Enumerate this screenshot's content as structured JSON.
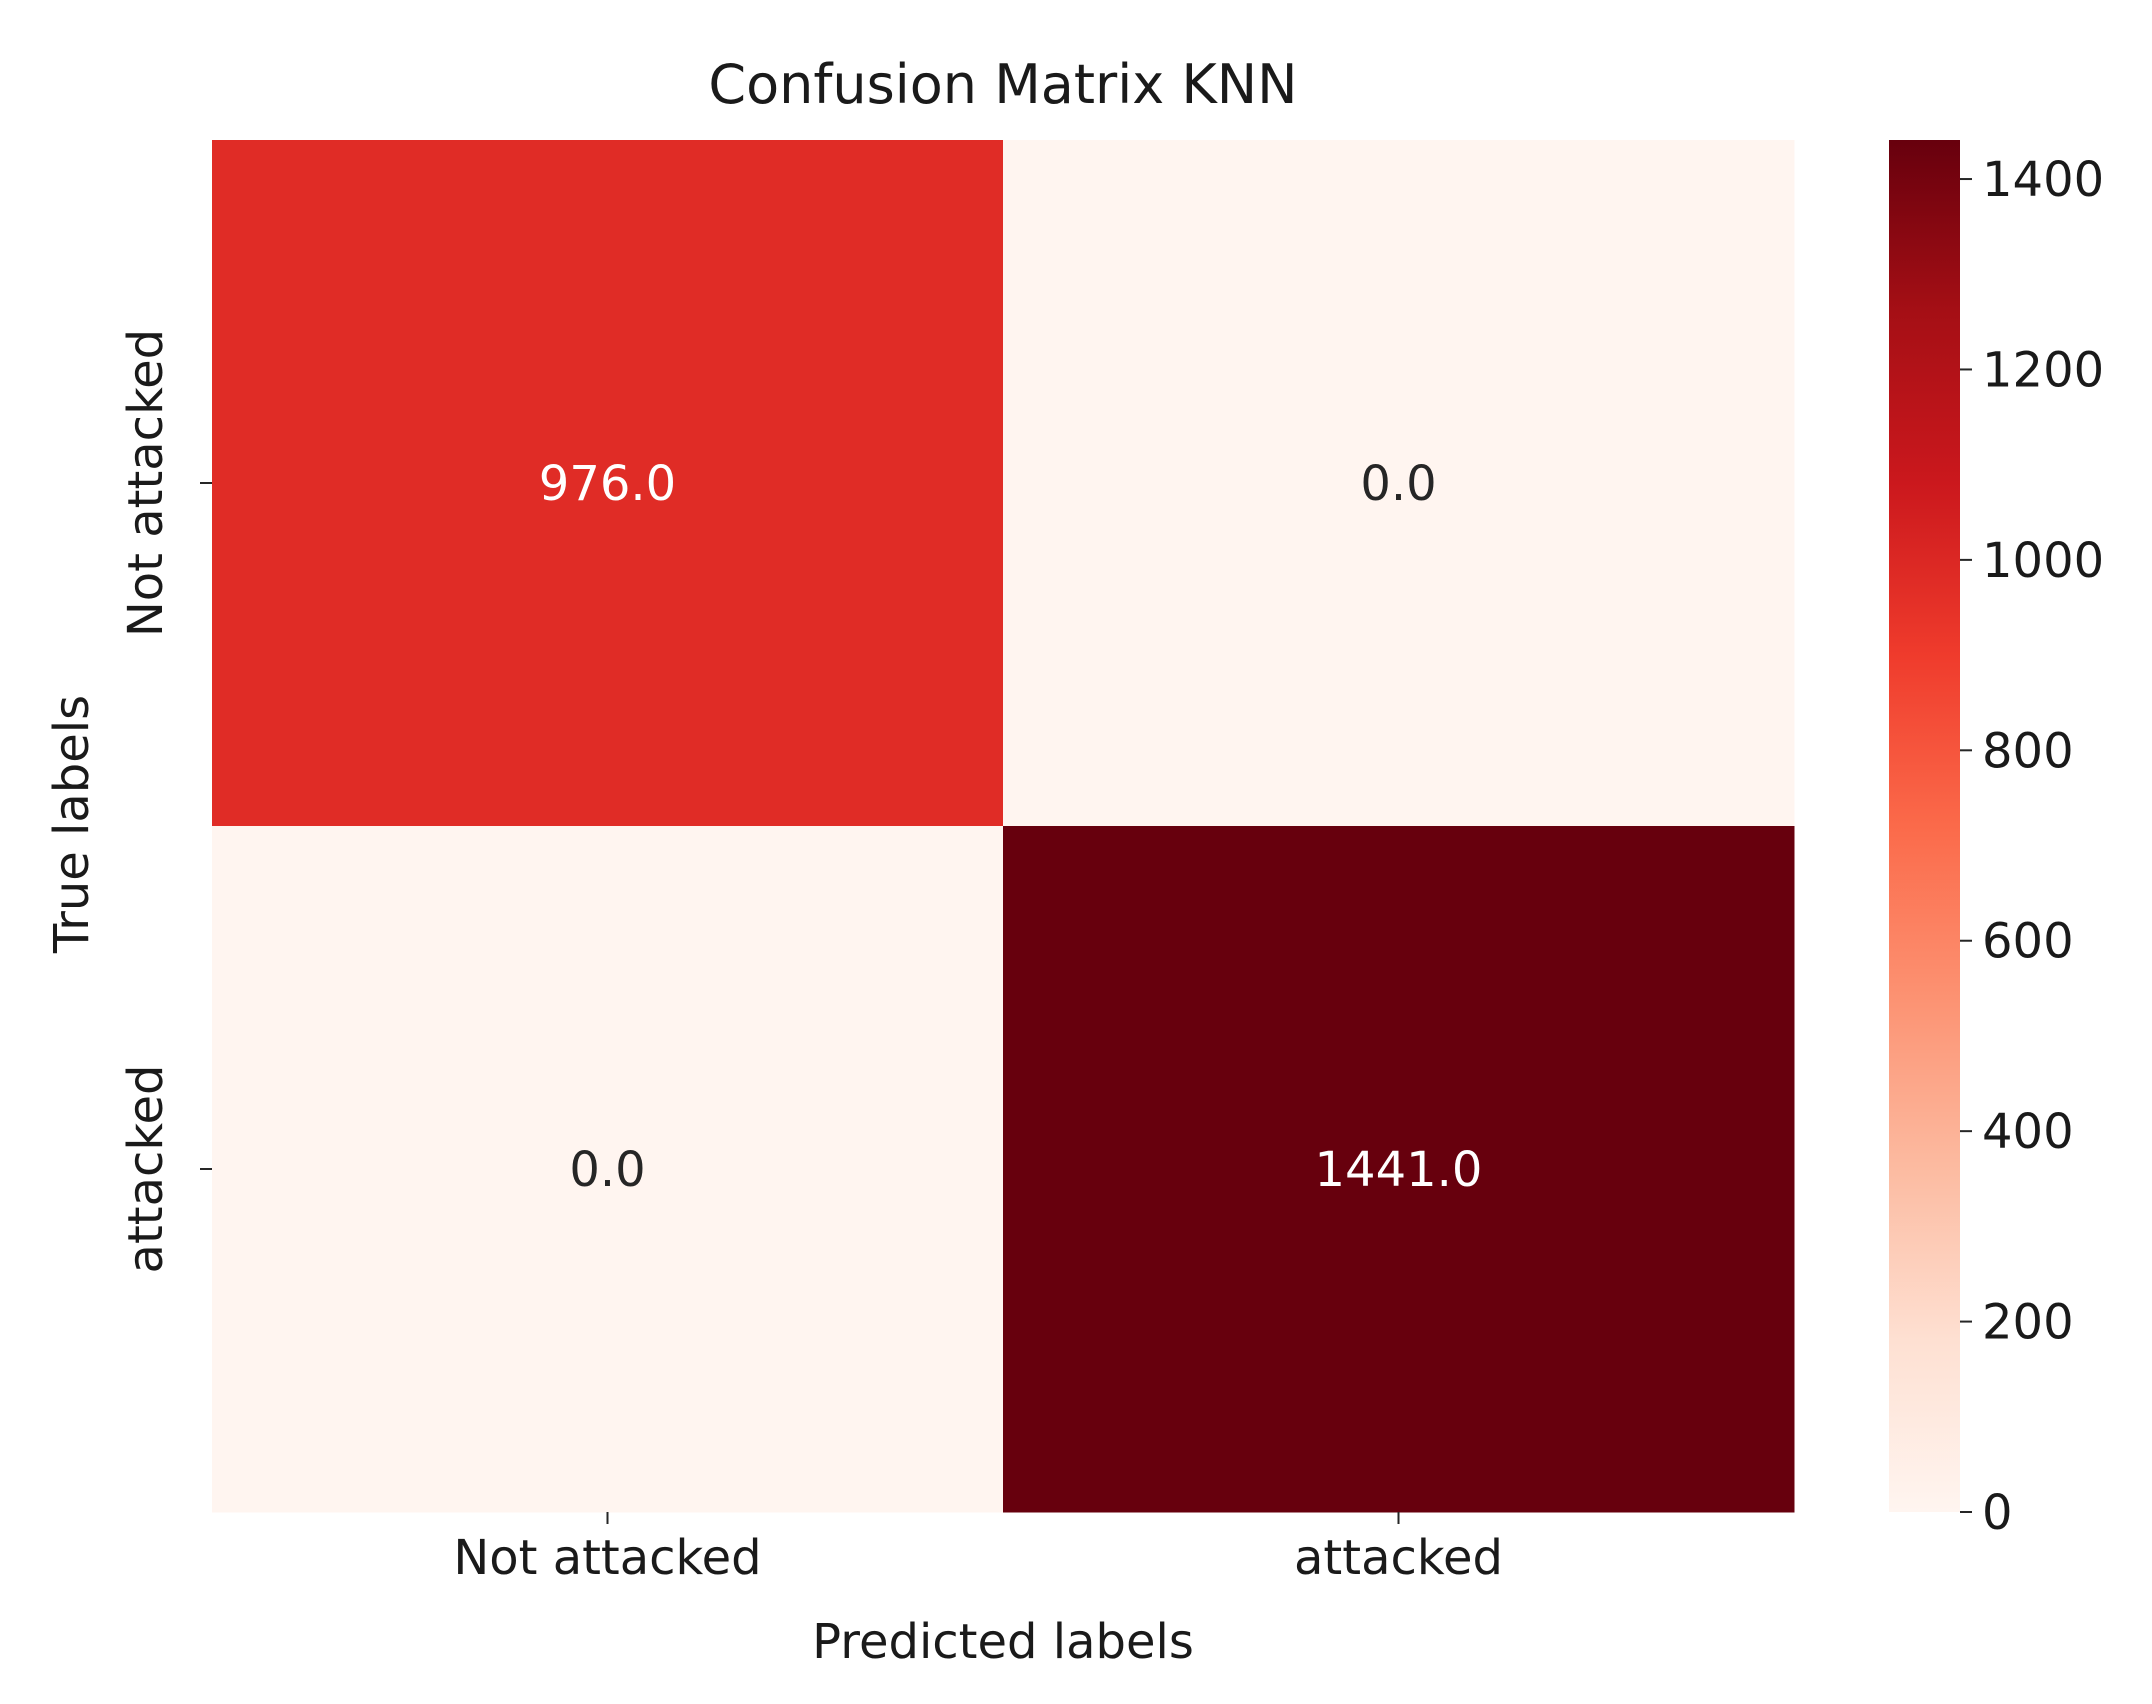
{
  "chart_data": {
    "type": "heatmap",
    "title": "Confusion Matrix KNN",
    "xlabel": "Predicted labels",
    "ylabel": "True labels",
    "x_categories": [
      "Not attacked",
      "attacked"
    ],
    "y_categories": [
      "Not attacked",
      "attacked"
    ],
    "values": [
      [
        976.0,
        0.0
      ],
      [
        0.0,
        1441.0
      ]
    ],
    "cell_labels": [
      [
        "976.0",
        "0.0"
      ],
      [
        "0.0",
        "1441.0"
      ]
    ],
    "colormap": "Reds",
    "colorbar": {
      "range": [
        0,
        1441
      ],
      "ticks": [
        0,
        200,
        400,
        600,
        800,
        1000,
        1200,
        1400
      ],
      "tick_labels": [
        "0",
        "200",
        "400",
        "600",
        "800",
        "1000",
        "1200",
        "1400"
      ]
    },
    "grid": false,
    "legend": "colorbar-right"
  }
}
